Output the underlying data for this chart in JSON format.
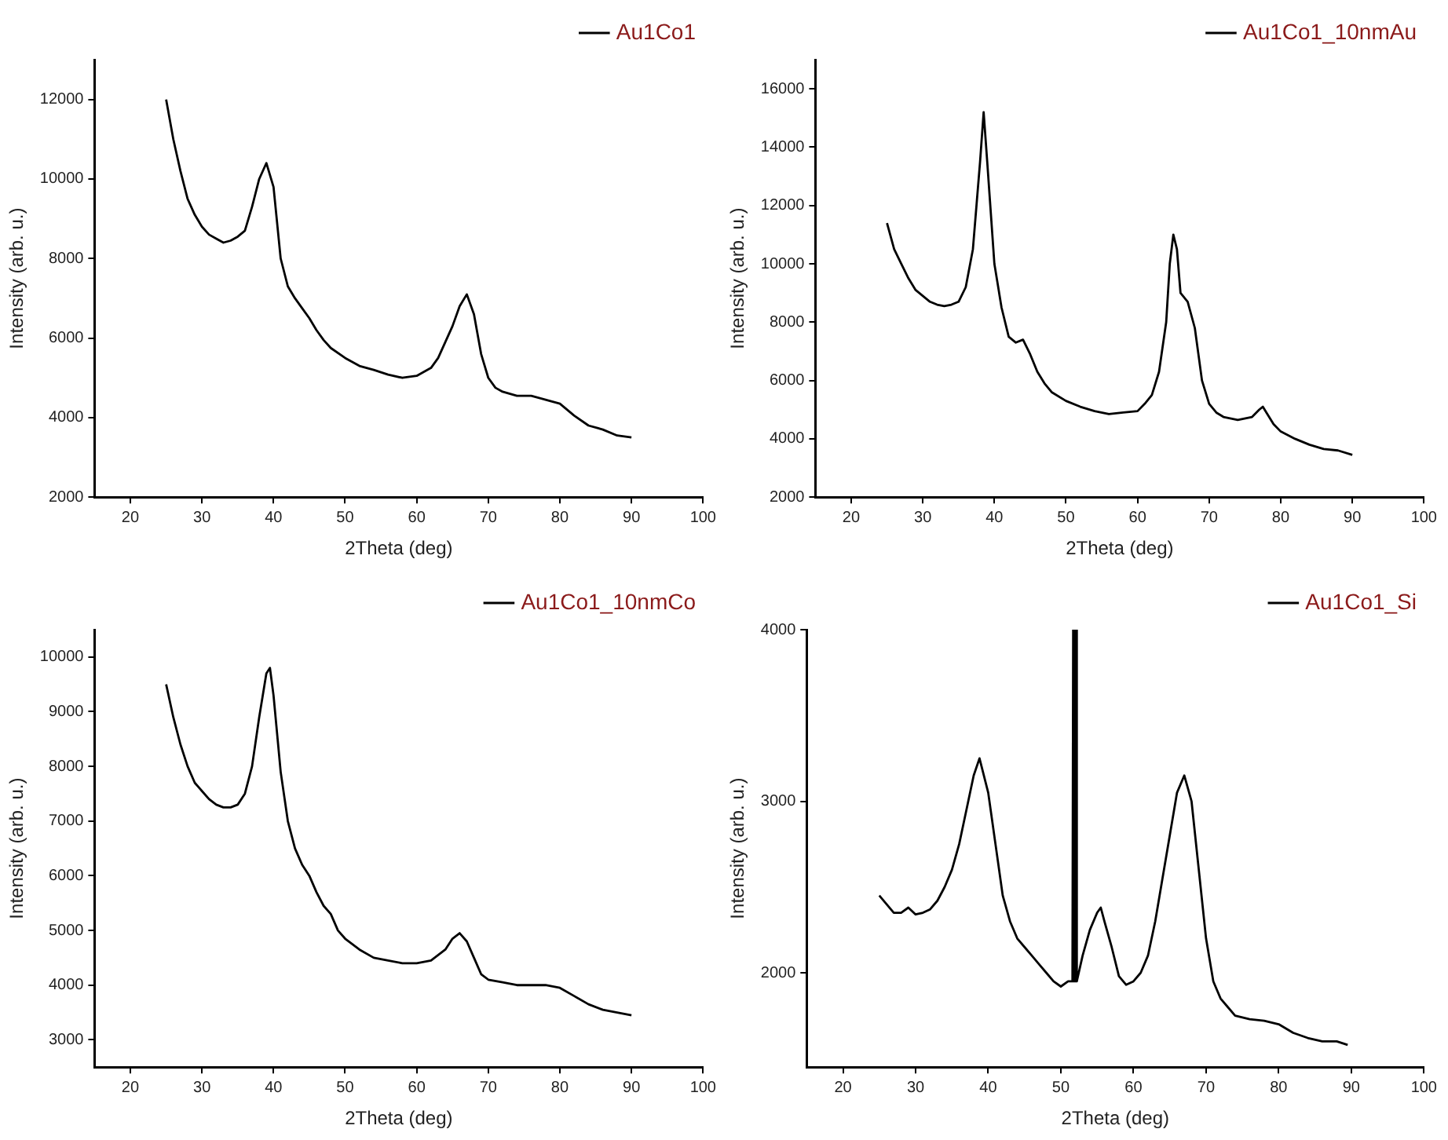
{
  "chart_data": [
    {
      "type": "line",
      "xlabel": "2Theta (deg)",
      "ylabel": "Intensity (arb. u.)",
      "legend": "top right",
      "grid": false,
      "xlim": [
        15,
        100
      ],
      "xticks": [
        20,
        30,
        40,
        50,
        60,
        70,
        80,
        90,
        100
      ],
      "ylim": [
        2000,
        13000
      ],
      "yticks": [
        2000,
        4000,
        6000,
        8000,
        10000,
        12000
      ],
      "x": [
        25,
        26,
        27,
        28,
        29,
        30,
        31,
        32,
        33,
        34,
        35,
        36,
        37,
        38,
        39,
        40,
        41,
        42,
        43,
        44,
        45,
        46,
        47,
        48,
        50,
        52,
        54,
        56,
        58,
        60,
        62,
        63,
        64,
        65,
        66,
        67,
        68,
        69,
        70,
        71,
        72,
        74,
        76,
        78,
        80,
        82,
        84,
        86,
        88,
        90
      ],
      "series": [
        {
          "name": "Au1Co1",
          "color": "#000000",
          "values": [
            12000,
            11000,
            10200,
            9500,
            9100,
            8800,
            8600,
            8500,
            8400,
            8450,
            8550,
            8700,
            9300,
            10000,
            10400,
            9800,
            8000,
            7300,
            7000,
            6750,
            6500,
            6200,
            5950,
            5750,
            5500,
            5300,
            5200,
            5080,
            5000,
            5050,
            5250,
            5500,
            5900,
            6300,
            6800,
            7100,
            6600,
            5600,
            5000,
            4750,
            4650,
            4550,
            4550,
            4450,
            4350,
            4050,
            3800,
            3700,
            3550,
            3500
          ]
        }
      ]
    },
    {
      "type": "line",
      "xlabel": "2Theta (deg)",
      "ylabel": "Intensity (arb. u.)",
      "legend": "top right",
      "grid": false,
      "xlim": [
        15,
        100
      ],
      "xticks": [
        20,
        30,
        40,
        50,
        60,
        70,
        80,
        90,
        100
      ],
      "ylim": [
        2000,
        17000
      ],
      "yticks": [
        2000,
        4000,
        6000,
        8000,
        10000,
        12000,
        14000,
        16000
      ],
      "x": [
        25,
        26,
        27,
        28,
        29,
        30,
        31,
        32,
        33,
        34,
        35,
        36,
        37,
        38,
        38.5,
        39,
        40,
        41,
        42,
        43,
        44,
        45,
        46,
        47,
        48,
        50,
        52,
        54,
        56,
        58,
        60,
        61,
        62,
        63,
        64,
        64.5,
        65,
        65.5,
        66,
        67,
        68,
        69,
        70,
        71,
        72,
        74,
        76,
        77,
        77.5,
        78,
        79,
        80,
        82,
        84,
        86,
        88,
        90
      ],
      "series": [
        {
          "name": "Au1Co1_10nmAu",
          "color": "#000000",
          "values": [
            11400,
            10500,
            10000,
            9500,
            9100,
            8900,
            8700,
            8600,
            8550,
            8600,
            8700,
            9200,
            10500,
            13500,
            15200,
            13500,
            10000,
            8500,
            7500,
            7300,
            7400,
            6900,
            6300,
            5900,
            5600,
            5300,
            5100,
            4950,
            4850,
            4900,
            4950,
            5200,
            5500,
            6300,
            8000,
            10000,
            11000,
            10500,
            9000,
            8700,
            7800,
            6000,
            5200,
            4900,
            4750,
            4650,
            4750,
            5000,
            5100,
            4900,
            4500,
            4250,
            4000,
            3800,
            3650,
            3600,
            3450
          ]
        }
      ]
    },
    {
      "type": "line",
      "xlabel": "2Theta (deg)",
      "ylabel": "Intensity (arb. u.)",
      "legend": "top right",
      "grid": false,
      "xlim": [
        15,
        100
      ],
      "xticks": [
        20,
        30,
        40,
        50,
        60,
        70,
        80,
        90,
        100
      ],
      "ylim": [
        2500,
        10500
      ],
      "yticks": [
        3000,
        4000,
        5000,
        6000,
        7000,
        8000,
        9000,
        10000
      ],
      "x": [
        25,
        26,
        27,
        28,
        29,
        30,
        31,
        32,
        33,
        34,
        35,
        36,
        37,
        38,
        39,
        39.5,
        40,
        41,
        42,
        43,
        44,
        45,
        46,
        47,
        48,
        49,
        50,
        52,
        54,
        56,
        58,
        60,
        62,
        64,
        65,
        66,
        67,
        68,
        69,
        70,
        72,
        74,
        76,
        78,
        80,
        82,
        84,
        86,
        88,
        90
      ],
      "series": [
        {
          "name": "Au1Co1_10nmCo",
          "color": "#000000",
          "values": [
            9500,
            8900,
            8400,
            8000,
            7700,
            7550,
            7400,
            7300,
            7250,
            7250,
            7300,
            7500,
            8000,
            8900,
            9700,
            9800,
            9300,
            7900,
            7000,
            6500,
            6200,
            6000,
            5700,
            5450,
            5300,
            5000,
            4850,
            4650,
            4500,
            4450,
            4400,
            4400,
            4450,
            4650,
            4850,
            4950,
            4800,
            4500,
            4200,
            4100,
            4050,
            4000,
            4000,
            4000,
            3950,
            3800,
            3650,
            3550,
            3500,
            3450
          ]
        }
      ]
    },
    {
      "type": "line",
      "xlabel": "2Theta (deg)",
      "ylabel": "Intensity (arb. u.)",
      "legend": "top right",
      "grid": false,
      "xlim": [
        15,
        100
      ],
      "xticks": [
        20,
        30,
        40,
        50,
        60,
        70,
        80,
        90,
        100
      ],
      "ylim": [
        1450,
        4000
      ],
      "yticks": [
        2000,
        3000,
        4000
      ],
      "x": [
        25,
        26,
        27,
        28,
        29,
        30,
        31,
        32,
        33,
        34,
        35,
        36,
        37,
        38,
        38.8,
        40,
        41,
        42,
        43,
        44,
        45,
        46,
        47,
        48,
        49,
        50,
        51,
        51.6,
        51.7,
        51.8,
        52,
        52.1,
        52.2,
        53,
        54,
        55,
        55.5,
        56,
        57,
        58,
        59,
        60,
        61,
        62,
        63,
        64,
        65,
        66,
        67,
        68,
        69,
        70,
        71,
        72,
        73,
        74,
        76,
        78,
        80,
        82,
        84,
        86,
        88,
        89.5
      ],
      "series": [
        {
          "name": "Au1Co1_Si",
          "color": "#000000",
          "values": [
            2450,
            2400,
            2350,
            2350,
            2380,
            2340,
            2350,
            2370,
            2420,
            2500,
            2600,
            2750,
            2950,
            3150,
            3250,
            3050,
            2750,
            2450,
            2300,
            2200,
            2150,
            2100,
            2050,
            2000,
            1950,
            1920,
            1950,
            1950,
            4000,
            1950,
            1950,
            4000,
            1950,
            2100,
            2250,
            2350,
            2380,
            2300,
            2150,
            1980,
            1930,
            1950,
            2000,
            2100,
            2300,
            2550,
            2800,
            3050,
            3150,
            3000,
            2600,
            2200,
            1950,
            1850,
            1800,
            1750,
            1730,
            1720,
            1700,
            1650,
            1620,
            1600,
            1600,
            1580
          ]
        }
      ]
    }
  ]
}
